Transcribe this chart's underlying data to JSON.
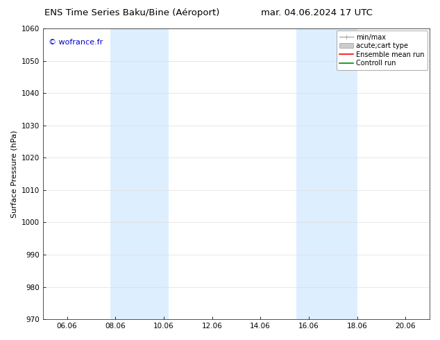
{
  "title_left": "ENS Time Series Baku/Bine (Aéroport)",
  "title_right": "mar. 04.06.2024 17 UTC",
  "ylabel": "Surface Pressure (hPa)",
  "ylim": [
    970,
    1060
  ],
  "yticks": [
    970,
    980,
    990,
    1000,
    1010,
    1020,
    1030,
    1040,
    1050,
    1060
  ],
  "xtick_labels": [
    "06.06",
    "08.06",
    "10.06",
    "12.06",
    "14.06",
    "16.06",
    "18.06",
    "20.06"
  ],
  "xtick_positions": [
    1,
    3,
    5,
    7,
    9,
    11,
    13,
    15
  ],
  "xlim": [
    0,
    16
  ],
  "shaded_bands": [
    {
      "xstart": 2.8,
      "xend": 5.2
    },
    {
      "xstart": 10.5,
      "xend": 13.0
    }
  ],
  "shaded_color": "#ddeeff",
  "background_color": "#ffffff",
  "watermark": "© wofrance.fr",
  "watermark_color": "#0000cc",
  "legend_entries": [
    {
      "label": "min/max",
      "color": "#aaaaaa",
      "lw": 1.0
    },
    {
      "label": "acute;cart type",
      "color": "#cccccc",
      "lw": 5
    },
    {
      "label": "Ensemble mean run",
      "color": "#ff0000",
      "lw": 1.2
    },
    {
      "label": "Controll run",
      "color": "#008800",
      "lw": 1.2
    }
  ],
  "title_fontsize": 9.5,
  "tick_fontsize": 7.5,
  "ylabel_fontsize": 8,
  "watermark_fontsize": 8,
  "legend_fontsize": 7
}
